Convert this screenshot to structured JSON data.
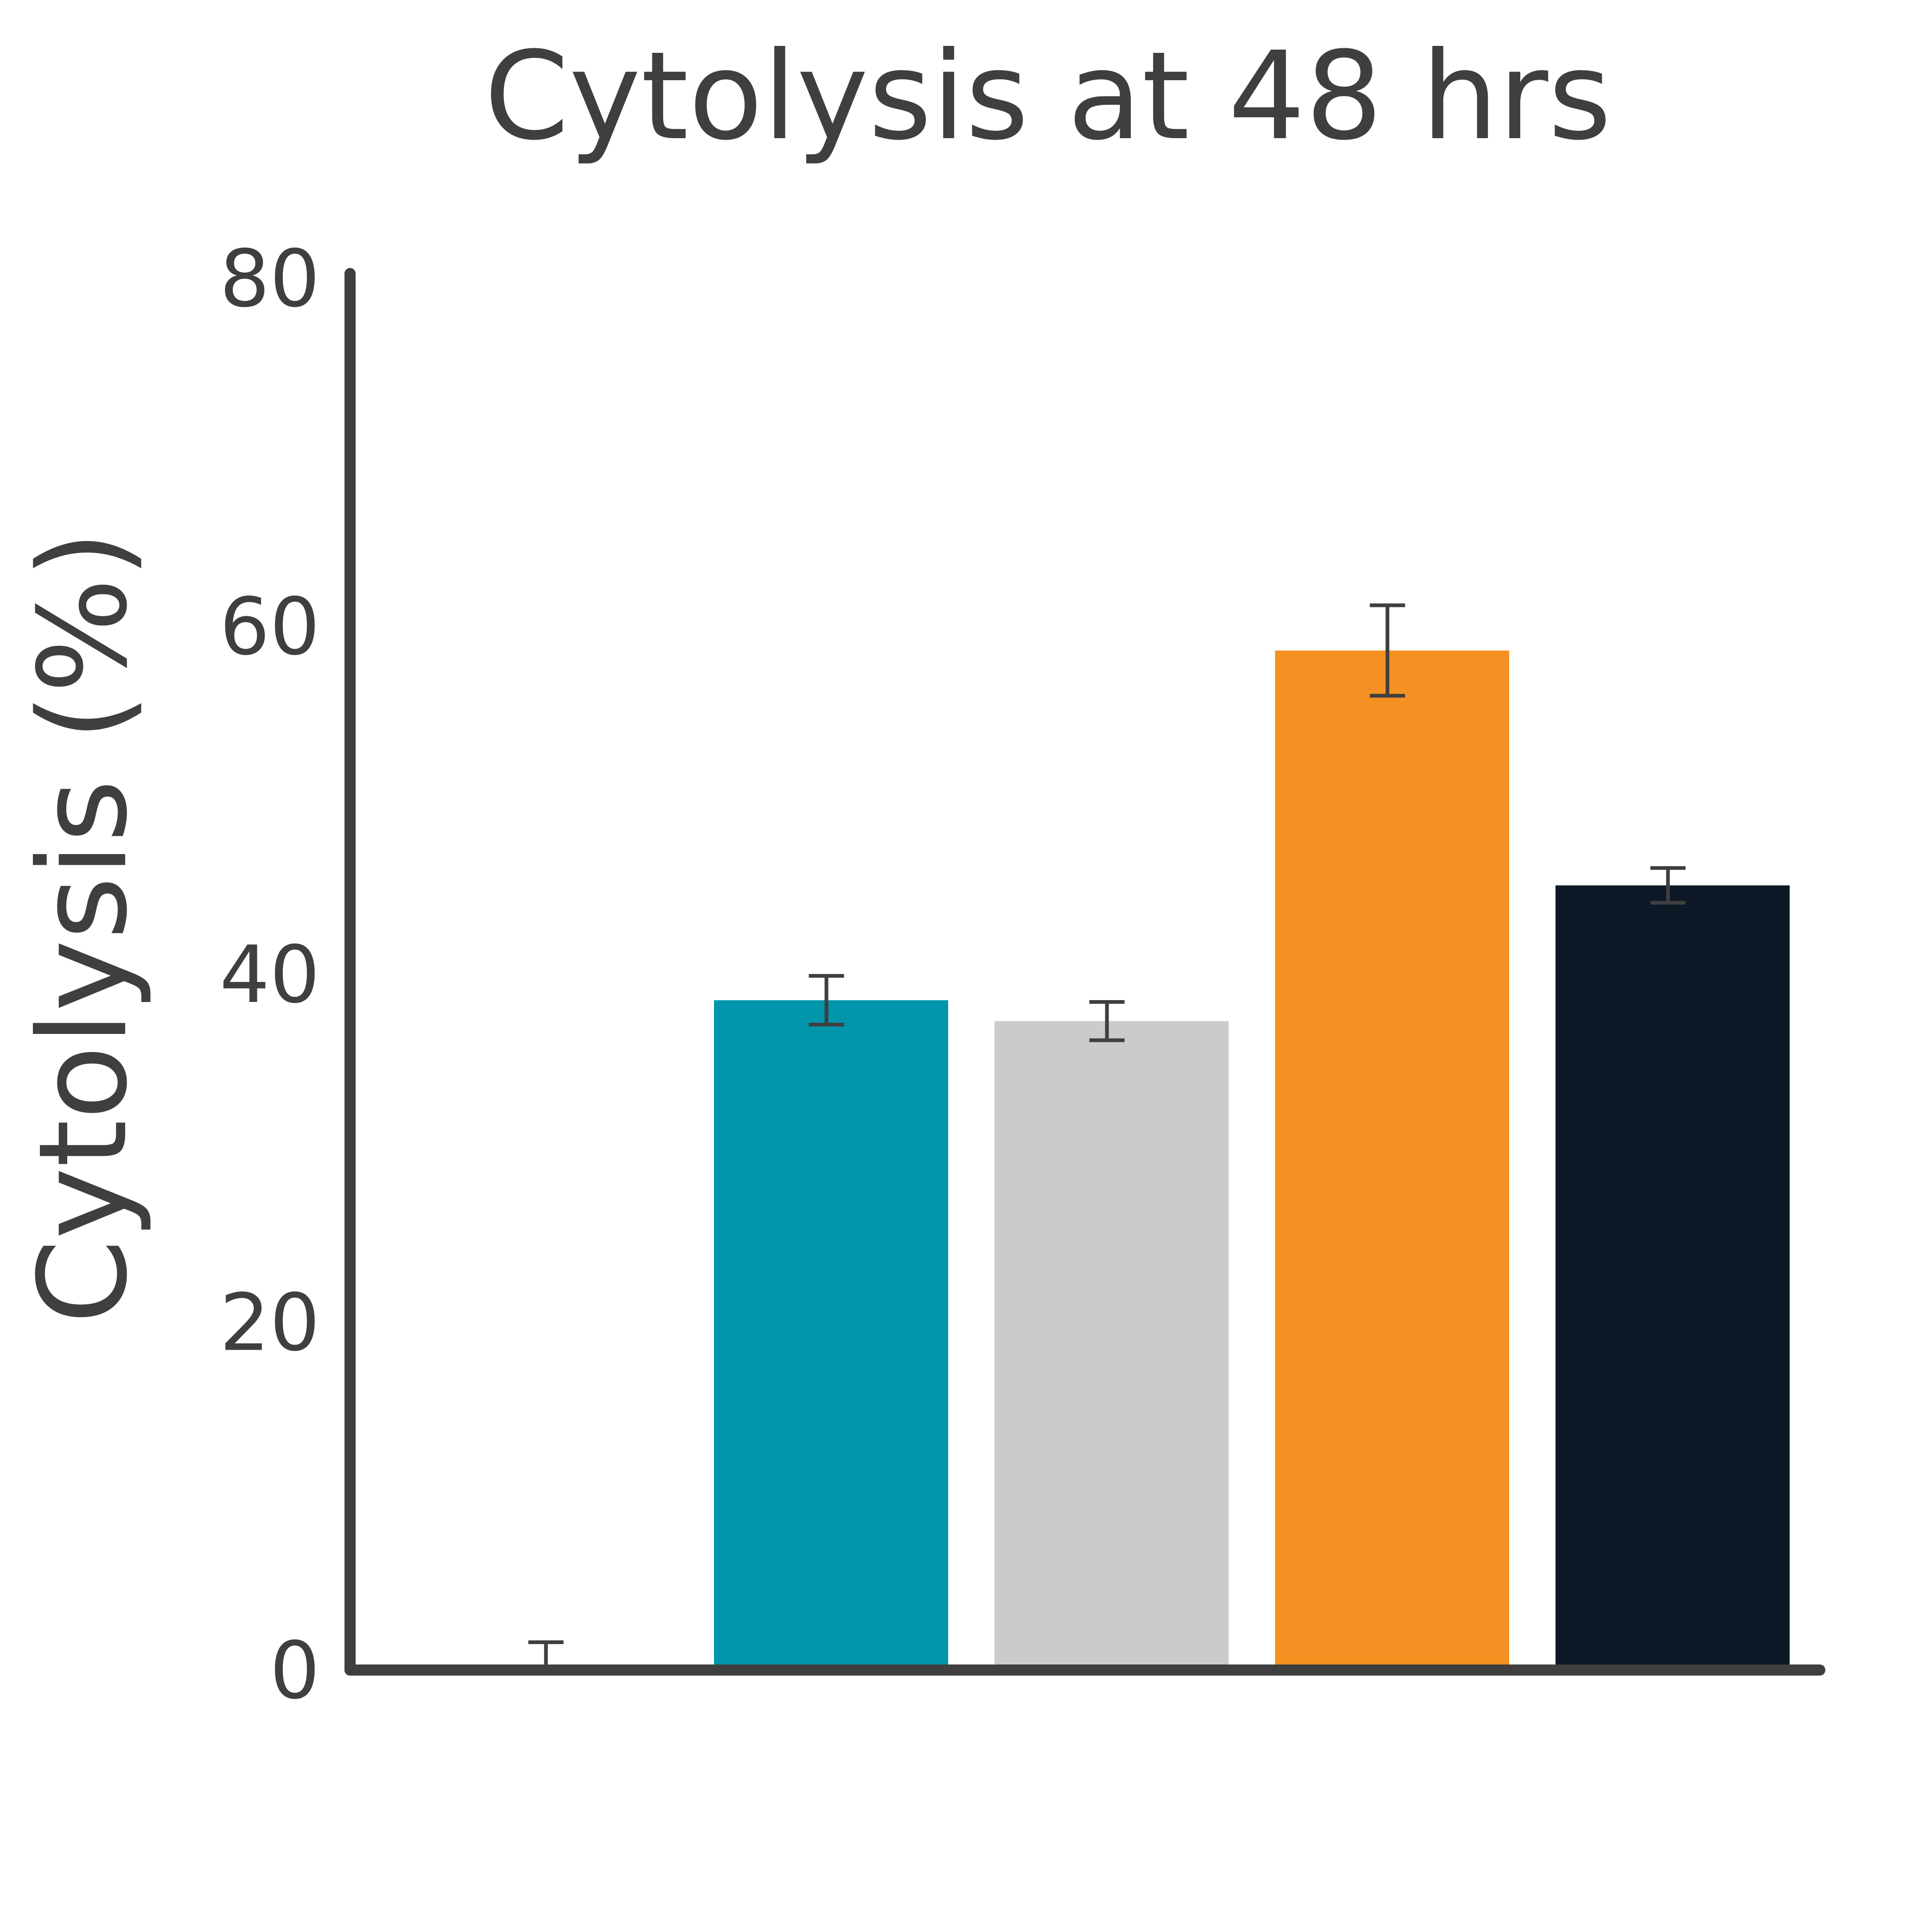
{
  "chart_data": {
    "type": "bar",
    "title": "Cytolysis at 48 hrs",
    "xlabel": "",
    "ylabel": "Cytolysis (%)",
    "ylim": [
      0,
      80
    ],
    "yticks": [
      "0",
      "20",
      "40",
      "60",
      "80"
    ],
    "grid": false,
    "legend": "none",
    "categories": [
      "",
      "",
      "",
      "",
      ""
    ],
    "values": [
      0,
      38.5,
      37.3,
      58.6,
      45.1
    ],
    "errors": [
      1.6,
      1.4,
      1.1,
      2.6,
      1.0
    ],
    "colors": [
      "#ffffff",
      "#0095aa",
      "#cbcbcb",
      "#f59122",
      "#0d1826"
    ]
  }
}
